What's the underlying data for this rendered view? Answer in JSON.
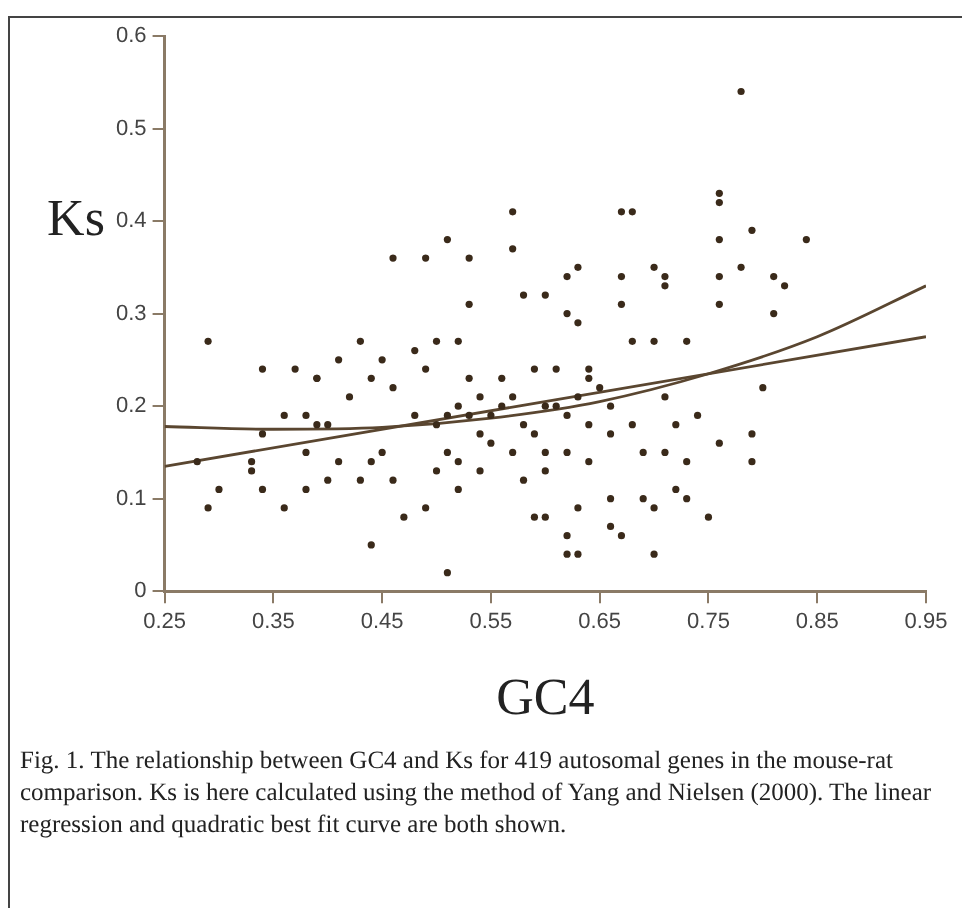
{
  "chart_data": {
    "type": "scatter",
    "xlabel": "GC4",
    "ylabel": "Ks",
    "xlim": [
      0.25,
      0.95
    ],
    "xticks": [
      0.25,
      0.35,
      0.45,
      0.55,
      0.65,
      0.75,
      0.85,
      0.95
    ],
    "ylim": [
      0,
      0.6
    ],
    "yticks": [
      0,
      0.1,
      0.2,
      0.3,
      0.4,
      0.5,
      0.6
    ],
    "grid": false,
    "legend": false,
    "annotations": [
      "Fig. 1. The relationship between GC4 and Ks for 419 autosomal genes in the mouse-rat comparison. Ks is here calculated using the method of Yang and Nielsen (2000). The linear regression and quadratic best fit curve are both shown."
    ],
    "series": [
      {
        "marker": "circle",
        "color": "#3a2a1a",
        "x": [
          0.29,
          0.28,
          0.29,
          0.3,
          0.34,
          0.33,
          0.33,
          0.34,
          0.34,
          0.36,
          0.36,
          0.37,
          0.38,
          0.38,
          0.38,
          0.39,
          0.39,
          0.39,
          0.4,
          0.4,
          0.41,
          0.41,
          0.42,
          0.43,
          0.43,
          0.44,
          0.44,
          0.44,
          0.45,
          0.45,
          0.46,
          0.46,
          0.46,
          0.47,
          0.48,
          0.48,
          0.49,
          0.49,
          0.49,
          0.5,
          0.5,
          0.51,
          0.51,
          0.51,
          0.51,
          0.52,
          0.52,
          0.52,
          0.53,
          0.53,
          0.53,
          0.54,
          0.54,
          0.54,
          0.57,
          0.57,
          0.58,
          0.59,
          0.59,
          0.58,
          0.59,
          0.6,
          0.6,
          0.6,
          0.61,
          0.61,
          0.62,
          0.62,
          0.62,
          0.63,
          0.63,
          0.63,
          0.63,
          0.64,
          0.64,
          0.62,
          0.64,
          0.66,
          0.66,
          0.66,
          0.67,
          0.67,
          0.67,
          0.68,
          0.67,
          0.68,
          0.68,
          0.69,
          0.69,
          0.7,
          0.7,
          0.7,
          0.7,
          0.71,
          0.71,
          0.71,
          0.71,
          0.72,
          0.72,
          0.73,
          0.73,
          0.73,
          0.74,
          0.75,
          0.76,
          0.76,
          0.76,
          0.76,
          0.76,
          0.76,
          0.78,
          0.79,
          0.79,
          0.79,
          0.8,
          0.81,
          0.81,
          0.82,
          0.84,
          0.78,
          0.55,
          0.56,
          0.57,
          0.58,
          0.6,
          0.62,
          0.63,
          0.65,
          0.55,
          0.57,
          0.6,
          0.62,
          0.64,
          0.66,
          0.56,
          0.53,
          0.5,
          0.52
        ],
        "values": [
          0.27,
          0.14,
          0.09,
          0.11,
          0.24,
          0.14,
          0.13,
          0.11,
          0.17,
          0.19,
          0.09,
          0.24,
          0.19,
          0.15,
          0.11,
          0.23,
          0.23,
          0.18,
          0.12,
          0.18,
          0.25,
          0.14,
          0.21,
          0.27,
          0.12,
          0.05,
          0.23,
          0.14,
          0.15,
          0.25,
          0.36,
          0.22,
          0.12,
          0.08,
          0.26,
          0.19,
          0.09,
          0.36,
          0.24,
          0.13,
          0.27,
          0.38,
          0.02,
          0.19,
          0.15,
          0.27,
          0.14,
          0.11,
          0.36,
          0.31,
          0.23,
          0.17,
          0.13,
          0.21,
          0.41,
          0.37,
          0.32,
          0.24,
          0.17,
          0.12,
          0.08,
          0.32,
          0.08,
          0.15,
          0.24,
          0.2,
          0.3,
          0.34,
          0.06,
          0.35,
          0.09,
          0.04,
          0.29,
          0.18,
          0.14,
          0.04,
          0.24,
          0.07,
          0.17,
          0.1,
          0.34,
          0.31,
          0.41,
          0.41,
          0.06,
          0.27,
          0.18,
          0.15,
          0.1,
          0.35,
          0.27,
          0.09,
          0.04,
          0.34,
          0.21,
          0.15,
          0.33,
          0.11,
          0.18,
          0.27,
          0.14,
          0.1,
          0.19,
          0.08,
          0.43,
          0.42,
          0.34,
          0.16,
          0.38,
          0.31,
          0.35,
          0.39,
          0.17,
          0.14,
          0.22,
          0.34,
          0.3,
          0.33,
          0.38,
          0.54,
          0.19,
          0.2,
          0.21,
          0.18,
          0.2,
          0.19,
          0.21,
          0.22,
          0.16,
          0.15,
          0.13,
          0.15,
          0.23,
          0.2,
          0.23,
          0.19,
          0.18,
          0.2
        ]
      },
      {
        "type": "line",
        "marker": "none",
        "color": "#5a4630",
        "x": [
          0.25,
          0.95
        ],
        "values": [
          0.135,
          0.275
        ]
      },
      {
        "type": "line",
        "marker": "none",
        "color": "#5a4630",
        "x": [
          0.25,
          0.35,
          0.45,
          0.55,
          0.65,
          0.75,
          0.85,
          0.95
        ],
        "values": [
          0.178,
          0.175,
          0.177,
          0.187,
          0.205,
          0.235,
          0.275,
          0.33
        ]
      }
    ]
  }
}
